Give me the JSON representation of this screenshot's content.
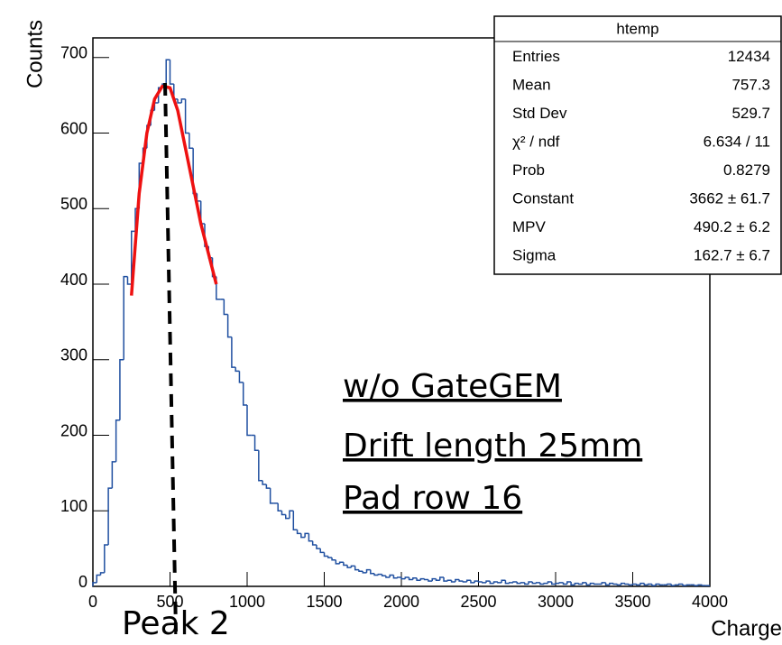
{
  "chart_data": {
    "type": "histogram",
    "x_label": "Charge",
    "y_label": "Counts",
    "bins": [
      0,
      25,
      50,
      75,
      100,
      125,
      150,
      175,
      200,
      225,
      250,
      275,
      300,
      325,
      350,
      375,
      400,
      425,
      450,
      475,
      500,
      525,
      550,
      575,
      600,
      625,
      650,
      675,
      700,
      725,
      750,
      775,
      800,
      825,
      850,
      875,
      900,
      925,
      950,
      975,
      1000,
      1025,
      1050,
      1075,
      1100,
      1125,
      1150,
      1175,
      1200,
      1225,
      1250,
      1275,
      1300,
      1325,
      1350,
      1375,
      1400,
      1425,
      1450,
      1475,
      1500,
      1525,
      1550,
      1575,
      1600,
      1625,
      1650,
      1675,
      1700,
      1725,
      1750,
      1775,
      1800,
      1825,
      1850,
      1875,
      1900,
      1925,
      1950,
      1975,
      2000,
      2025,
      2050,
      2075,
      2100,
      2125,
      2150,
      2175,
      2200,
      2225,
      2250,
      2275,
      2300,
      2325,
      2350,
      2375,
      2400,
      2425,
      2450,
      2475,
      2500,
      2525,
      2550,
      2575,
      2600,
      2625,
      2650,
      2675,
      2700,
      2725,
      2750,
      2775,
      2800,
      2825,
      2850,
      2875,
      2900,
      2925,
      2950,
      2975,
      3000,
      3025,
      3050,
      3075,
      3100,
      3125,
      3150,
      3175,
      3200,
      3225,
      3250,
      3275,
      3300,
      3325,
      3350,
      3375,
      3400,
      3425,
      3450,
      3475,
      3500,
      3525,
      3550,
      3575,
      3600,
      3625,
      3650,
      3675,
      3700,
      3725,
      3750,
      3775,
      3800,
      3825,
      3850,
      3875,
      3900,
      3925,
      3950,
      3975,
      4000
    ],
    "values": [
      5,
      15,
      18,
      55,
      130,
      165,
      220,
      300,
      410,
      400,
      470,
      500,
      560,
      580,
      610,
      630,
      640,
      660,
      665,
      697,
      665,
      645,
      640,
      645,
      600,
      580,
      520,
      510,
      480,
      450,
      435,
      410,
      380,
      380,
      360,
      330,
      290,
      285,
      270,
      240,
      200,
      200,
      180,
      140,
      135,
      130,
      110,
      110,
      100,
      95,
      90,
      100,
      75,
      70,
      65,
      70,
      60,
      55,
      50,
      45,
      40,
      38,
      35,
      30,
      32,
      28,
      25,
      27,
      22,
      20,
      18,
      22,
      17,
      15,
      16,
      14,
      12,
      15,
      11,
      12,
      10,
      12,
      9,
      11,
      8,
      10,
      9,
      7,
      10,
      8,
      12,
      7,
      8,
      6,
      9,
      7,
      6,
      8,
      5,
      7,
      6,
      5,
      7,
      4,
      6,
      5,
      8,
      4,
      5,
      6,
      4,
      5,
      3,
      6,
      4,
      5,
      3,
      4,
      6,
      3,
      4,
      5,
      3,
      6,
      2,
      4,
      3,
      5,
      2,
      4,
      3,
      3,
      5,
      2,
      4,
      3,
      2,
      4,
      3,
      2,
      3,
      2,
      4,
      2,
      3,
      1,
      3,
      2,
      2,
      3,
      1,
      2,
      3,
      1,
      2,
      2,
      1,
      2,
      1,
      1
    ],
    "color": "#1f4fa0",
    "fit": {
      "color": "#ee1111",
      "x": [
        250,
        300,
        350,
        400,
        450,
        500,
        550,
        600,
        650,
        700,
        750,
        800
      ],
      "values": [
        385,
        520,
        600,
        645,
        662,
        660,
        630,
        580,
        530,
        480,
        440,
        400
      ]
    },
    "xlim": [
      0,
      4000
    ],
    "xticks": [
      0,
      500,
      1000,
      1500,
      2000,
      2500,
      3000,
      3500,
      4000
    ],
    "ylim": [
      0,
      726
    ],
    "yticks": [
      0,
      100,
      200,
      300,
      400,
      500,
      600,
      700
    ],
    "stats": {
      "title": "htemp",
      "rows": [
        [
          "Entries",
          "12434"
        ],
        [
          "Mean",
          "757.3"
        ],
        [
          "Std Dev",
          "529.7"
        ],
        [
          "χ² / ndf",
          "6.634 / 11"
        ],
        [
          "Prob",
          "0.8279"
        ],
        [
          "Constant",
          "3662 ± 61.7"
        ],
        [
          "MPV",
          "490.2 ± 6.2"
        ],
        [
          "Sigma",
          "162.7 ± 6.7"
        ]
      ]
    },
    "annotations": [
      "w/o GateGEM",
      "Drift length 25mm",
      "Pad row 16",
      "Peak 2"
    ]
  }
}
